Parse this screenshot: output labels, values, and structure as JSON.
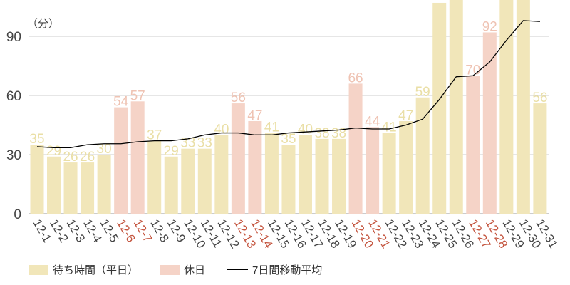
{
  "chart_data": {
    "type": "bar",
    "ylabel": "（分）",
    "ylim": [
      0,
      108
    ],
    "yticks": [
      0,
      30,
      60,
      90
    ],
    "grid": true,
    "categories": [
      "12-1",
      "12-2",
      "12-3",
      "12-4",
      "12-5",
      "12-6",
      "12-7",
      "12-8",
      "12-9",
      "12-10",
      "12-11",
      "12-12",
      "12-13",
      "12-14",
      "12-15",
      "12-16",
      "12-17",
      "12-18",
      "12-19",
      "12-20",
      "12-21",
      "12-22",
      "12-23",
      "12-24",
      "12-25",
      "12-26",
      "12-27",
      "12-28",
      "12-29",
      "12-30",
      "12-31"
    ],
    "values": [
      35,
      29,
      26,
      26,
      30,
      54,
      57,
      37,
      29,
      33,
      33,
      40,
      56,
      47,
      41,
      35,
      40,
      38,
      38,
      66,
      44,
      41,
      47,
      59,
      107,
      115,
      70,
      92,
      115,
      118,
      56
    ],
    "holiday": [
      false,
      false,
      false,
      false,
      false,
      true,
      true,
      false,
      false,
      false,
      false,
      false,
      true,
      true,
      false,
      false,
      false,
      false,
      false,
      true,
      true,
      false,
      false,
      false,
      false,
      false,
      true,
      true,
      false,
      false,
      false
    ],
    "moving_average": [
      34,
      33.5,
      33.5,
      35,
      35.5,
      35.5,
      36.5,
      37,
      37,
      38,
      40,
      41,
      41,
      40,
      40,
      41,
      41.5,
      42,
      42.5,
      43.5,
      43,
      43,
      45,
      48,
      58,
      69.5,
      70,
      77,
      88,
      98,
      97.5
    ],
    "series": [
      {
        "name": "待ち時間（平日）",
        "color": "#f1e6b9"
      },
      {
        "name": "休日",
        "color": "#f5d3c7"
      },
      {
        "name": "7日間移動平均",
        "color": "#000000"
      }
    ],
    "legend_position": "bottom-left",
    "colors": {
      "weekday_label": "#eadfa6",
      "holiday_label": "#efc3b3",
      "holiday_tick": "#c4553f",
      "tick": "#444444"
    }
  }
}
